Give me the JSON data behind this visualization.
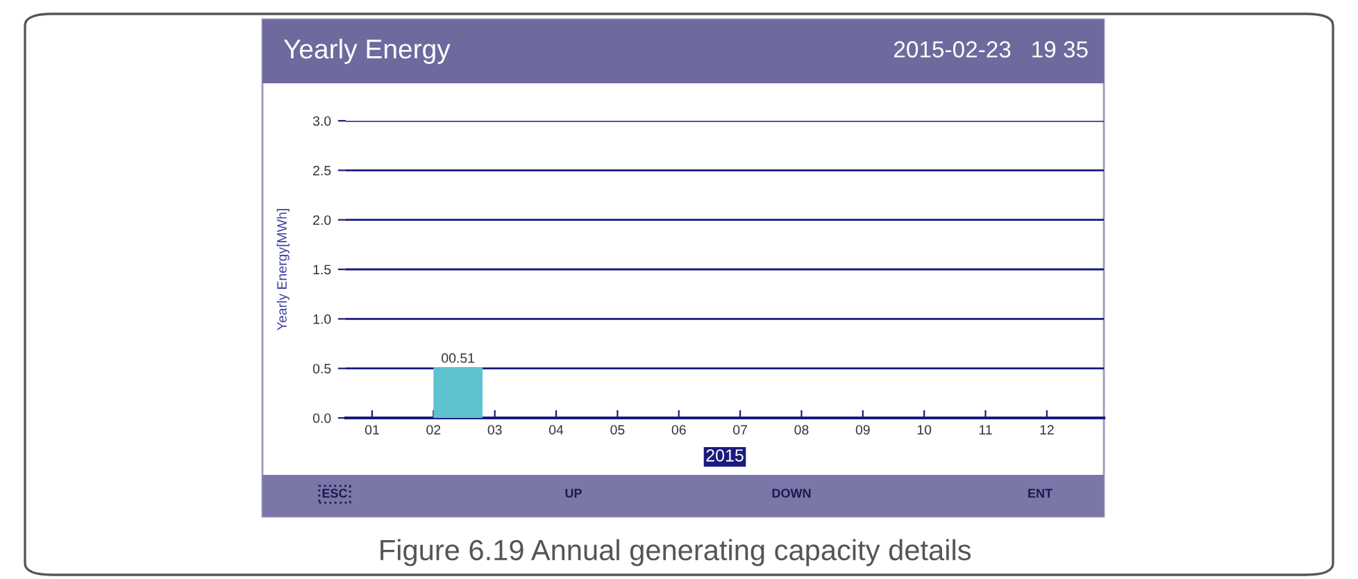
{
  "chart_data": {
    "type": "bar",
    "title": "Yearly Energy",
    "subtitle": "2015-02-23   19 35",
    "xlabel": "2015",
    "ylabel": "Yearly Energy[MWh]",
    "categories": [
      "01",
      "02",
      "03",
      "04",
      "05",
      "06",
      "07",
      "08",
      "09",
      "10",
      "11",
      "12"
    ],
    "values": [
      null,
      0.51,
      null,
      null,
      null,
      null,
      null,
      null,
      null,
      null,
      null,
      null
    ],
    "value_labels": [
      null,
      "00.51",
      null,
      null,
      null,
      null,
      null,
      null,
      null,
      null,
      null,
      null
    ],
    "color": "#5fc2d0",
    "ylim": [
      0,
      3.0
    ],
    "yticks": [
      {
        "value": 0,
        "label": "0.0"
      },
      {
        "value": 0.5,
        "label": "0.5"
      },
      {
        "value": 1,
        "label": "1.0"
      },
      {
        "value": 1.5,
        "label": "1.5"
      },
      {
        "value": 2,
        "label": "2.0"
      },
      {
        "value": 2.5,
        "label": "2.5"
      },
      {
        "value": 3,
        "label": "3.0"
      }
    ],
    "grid": "y",
    "annotations": [
      "ESC",
      "UP",
      "DOWN",
      "ENT",
      "Figure 6.19 Annual generating capacity details"
    ]
  }
}
